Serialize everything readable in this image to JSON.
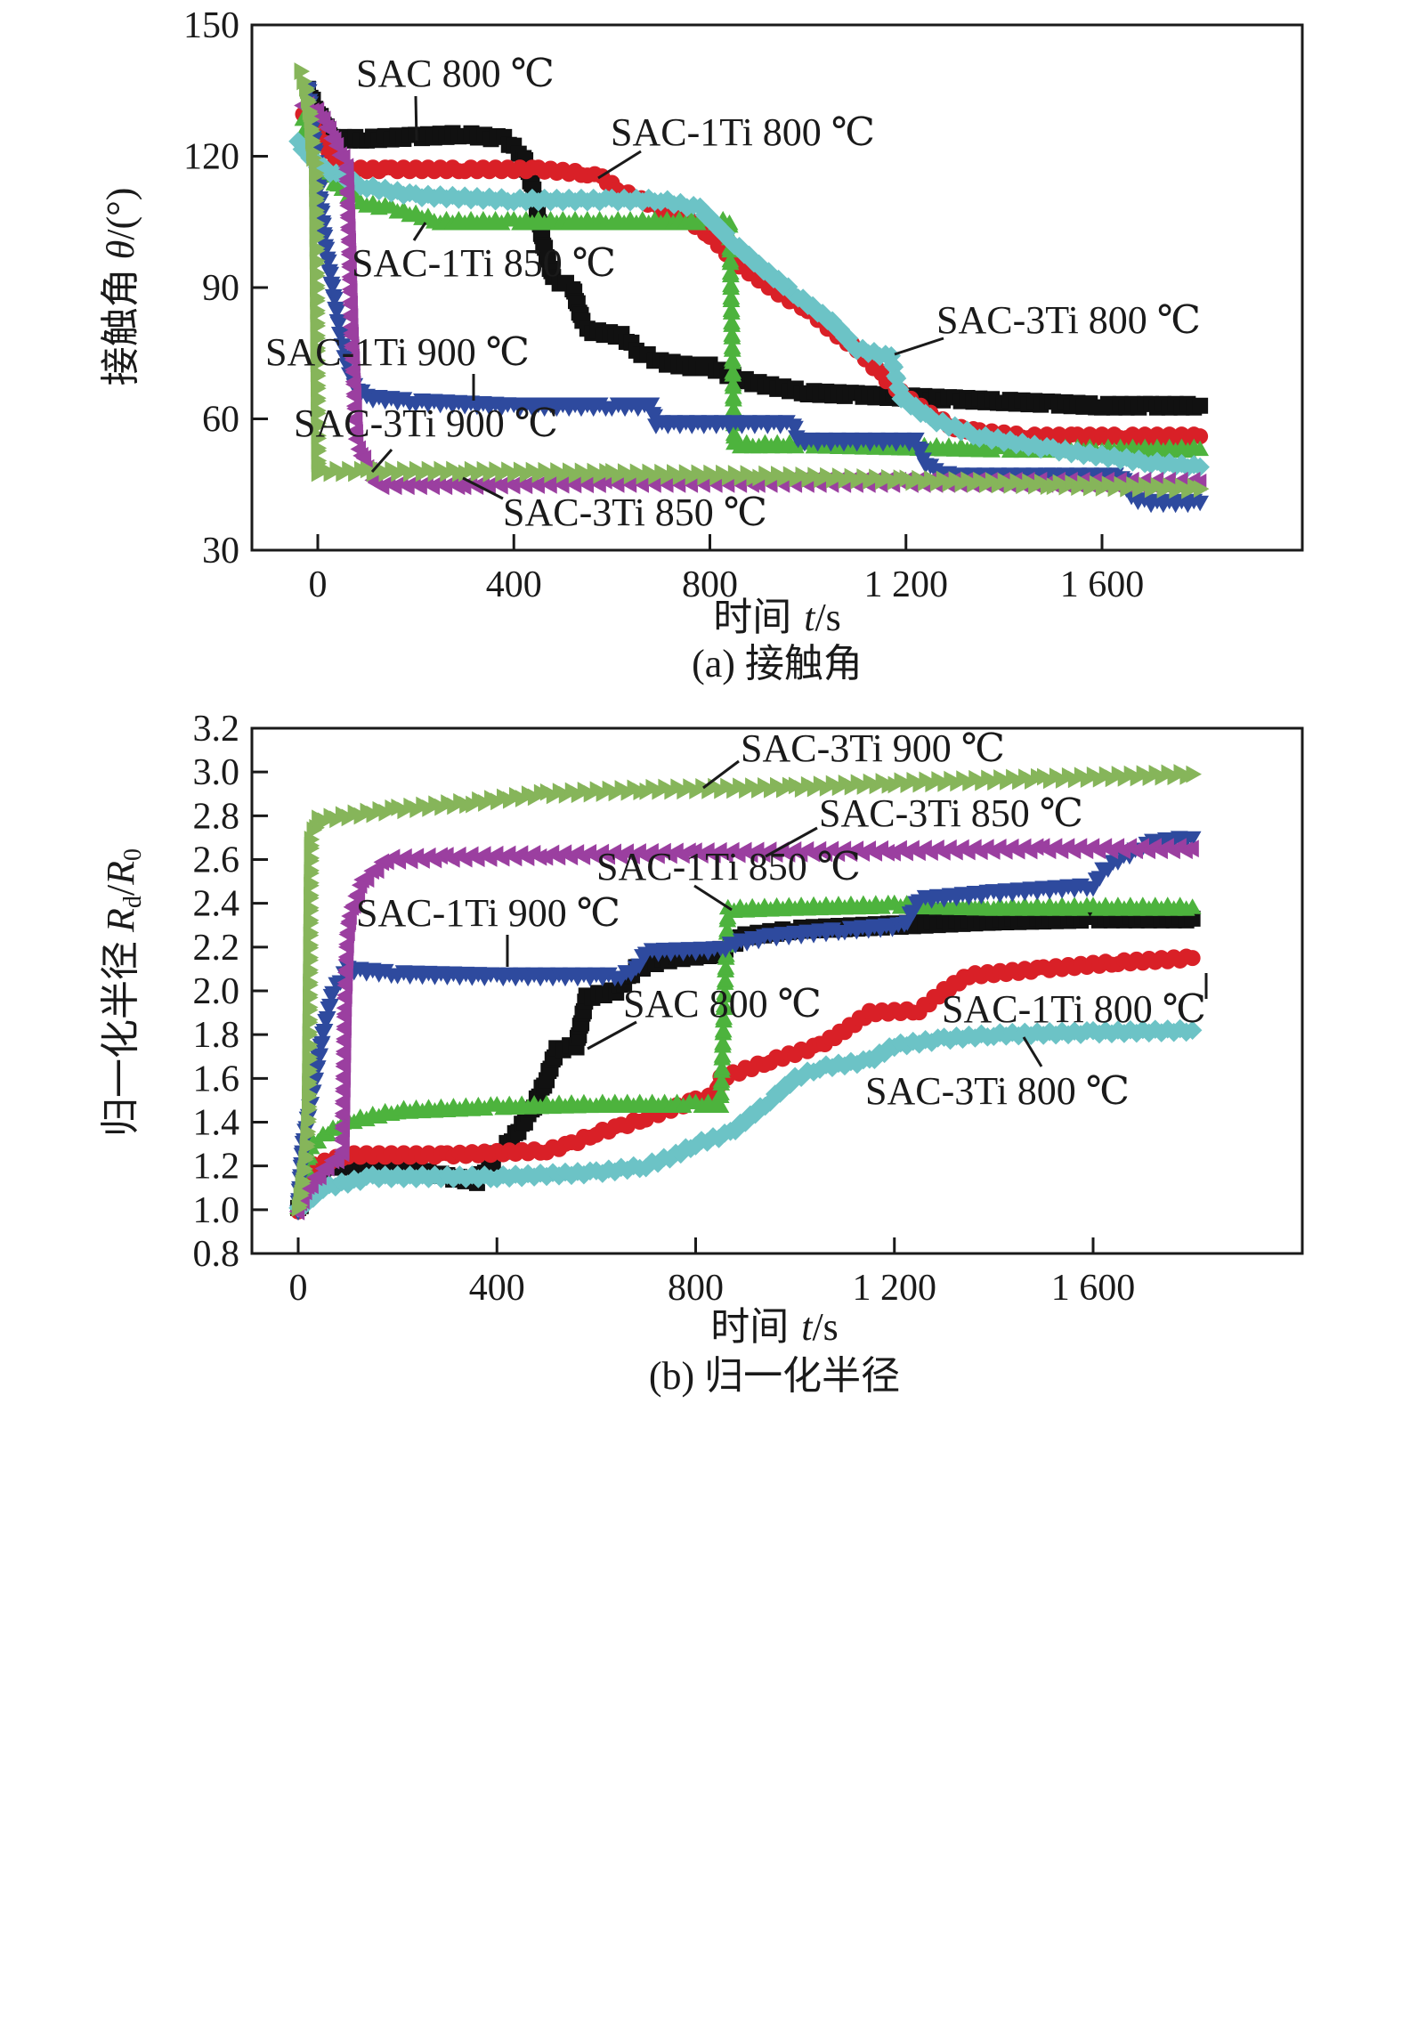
{
  "chart_data": [
    {
      "id": "a",
      "type": "scatter",
      "title": "",
      "caption": "(a) 接触角",
      "xlabel": "时间 t/s",
      "xlabel_parts": {
        "zh": "时间",
        "var": "t",
        "unit": "/s"
      },
      "ylabel": "接触角 θ/(°)",
      "ylabel_parts": {
        "zh": "接触角",
        "var": "θ",
        "unit": "/(°)"
      },
      "xlim": [
        -135,
        1990
      ],
      "ylim": [
        30,
        150
      ],
      "xticks": [
        0,
        400,
        800,
        1200,
        1600
      ],
      "xtick_labels": [
        "0",
        "400",
        "800",
        "1 200",
        "1 600"
      ],
      "yticks": [
        30,
        60,
        90,
        120,
        150
      ],
      "ytick_labels": [
        "30",
        "60",
        "90",
        "120",
        "150"
      ],
      "grid": false,
      "legend": "inline-annotations",
      "series": [
        {
          "name": "SAC 800 ℃",
          "color": "#111111",
          "marker": "square",
          "x": [
            -20,
            0,
            30,
            100,
            200,
            300,
            380,
            420,
            440,
            460,
            480,
            520,
            540,
            560,
            620,
            660,
            700,
            760,
            800,
            860,
            900,
            1000,
            1100,
            1200,
            1300,
            1400,
            1500,
            1600,
            1700,
            1800
          ],
          "y": [
            135,
            130,
            124,
            124,
            124.5,
            125,
            124,
            120,
            112,
            100,
            92,
            90,
            82,
            80,
            79,
            75,
            73,
            72,
            72,
            69,
            68,
            66,
            65.5,
            65,
            64.5,
            64,
            63.5,
            63,
            63,
            63
          ]
        },
        {
          "name": "SAC-1Ti 800 ℃",
          "color": "#d92027",
          "marker": "circle",
          "x": [
            -30,
            0,
            50,
            150,
            300,
            450,
            550,
            580,
            620,
            660,
            700,
            760,
            800,
            850,
            900,
            950,
            1000,
            1050,
            1100,
            1150,
            1200,
            1250,
            1300,
            1350,
            1450,
            1550,
            1650,
            1800
          ],
          "y": [
            130,
            125,
            117,
            117,
            117,
            117,
            116,
            115,
            112,
            110,
            108,
            105,
            102,
            96,
            92,
            88,
            85,
            80,
            76,
            70,
            65,
            61,
            58,
            57,
            56,
            56,
            56,
            56
          ]
        },
        {
          "name": "SAC-1Ti 850 ℃",
          "color": "#4db33d",
          "marker": "triangle-up",
          "x": [
            -30,
            0,
            50,
            100,
            150,
            250,
            400,
            600,
            800,
            840,
            850,
            900,
            1000,
            1200,
            1400,
            1600,
            1800
          ],
          "y": [
            128,
            118,
            112,
            109,
            108,
            105,
            105,
            105,
            105,
            105,
            54,
            54,
            54,
            53.5,
            53,
            53,
            53
          ]
        },
        {
          "name": "SAC-1Ti 900 ℃",
          "color": "#2e4a9e",
          "marker": "triangle-down",
          "x": [
            -20,
            0,
            15,
            30,
            45,
            60,
            80,
            100,
            200,
            400,
            600,
            680,
            690,
            800,
            970,
            980,
            1100,
            1220,
            1240,
            1260,
            1300,
            1500,
            1640,
            1660,
            1700,
            1800
          ],
          "y": [
            136,
            115,
            100,
            90,
            80,
            72,
            67,
            65,
            64,
            63,
            63,
            63,
            59,
            59,
            59,
            55,
            55,
            55,
            50,
            48,
            47,
            47,
            47,
            42,
            41,
            41
          ]
        },
        {
          "name": "SAC-3Ti 800 ℃",
          "color": "#6cc3c6",
          "marker": "diamond",
          "x": [
            -40,
            0,
            50,
            100,
            200,
            400,
            600,
            700,
            780,
            850,
            900,
            980,
            1050,
            1100,
            1170,
            1190,
            1250,
            1350,
            1500,
            1700,
            1800
          ],
          "y": [
            123,
            118,
            115,
            113,
            111,
            110,
            110,
            110,
            108,
            100,
            95,
            88,
            82,
            76,
            74,
            65,
            60,
            56,
            53,
            50,
            49
          ]
        },
        {
          "name": "SAC-3Ti 850 ℃",
          "color": "#9b3fa0",
          "marker": "triangle-left",
          "x": [
            -30,
            0,
            20,
            40,
            60,
            65,
            70,
            80,
            90,
            120,
            300,
            600,
            900,
            1200,
            1500,
            1800
          ],
          "y": [
            132,
            130,
            127,
            122,
            118,
            100,
            80,
            55,
            52,
            45,
            45,
            45.5,
            45.5,
            45.5,
            45.5,
            45.5
          ]
        },
        {
          "name": "SAC-3Ti 900 ℃",
          "color": "#86b55a",
          "marker": "triangle-right",
          "x": [
            -35,
            -25,
            -15,
            -10,
            -5,
            0,
            100,
            300,
            600,
            900,
            1200,
            1500,
            1800
          ],
          "y": [
            139,
            136,
            128,
            120,
            118,
            48,
            48,
            48,
            47.5,
            47,
            46,
            45,
            44
          ]
        }
      ],
      "annotations": [
        {
          "text": "SAC 800 ℃",
          "series": "SAC 800 ℃"
        },
        {
          "text": "SAC-1Ti 800 ℃",
          "series": "SAC-1Ti 800 ℃"
        },
        {
          "text": "SAC-1Ti 850 ℃",
          "series": "SAC-1Ti 850 ℃"
        },
        {
          "text": "SAC-3Ti 800 ℃",
          "series": "SAC-3Ti 800 ℃"
        },
        {
          "text": "SAC-1Ti 900 ℃",
          "series": "SAC-1Ti 900 ℃"
        },
        {
          "text": "SAC-3Ti 900 ℃",
          "series": "SAC-3Ti 900 ℃"
        },
        {
          "text": "SAC-3Ti 850 ℃",
          "series": "SAC-3Ti 850 ℃"
        }
      ]
    },
    {
      "id": "b",
      "type": "scatter",
      "title": "",
      "caption": "(b) 归一化半径",
      "xlabel": "时间 t/s",
      "xlabel_parts": {
        "zh": "时间",
        "var": "t",
        "unit": "/s"
      },
      "ylabel": "归一化半径 Rd/R0",
      "ylabel_parts": {
        "zh": "归一化半径",
        "var": "R",
        "sub1": "d",
        "slash": "/",
        "var2": "R",
        "sub2": "0"
      },
      "xlim": [
        -100,
        2000
      ],
      "ylim": [
        0.8,
        3.2
      ],
      "xticks": [
        0,
        400,
        800,
        1200,
        1600
      ],
      "xtick_labels": [
        "0",
        "400",
        "800",
        "1 200",
        "1 600"
      ],
      "yticks": [
        0.8,
        1.0,
        1.2,
        1.4,
        1.6,
        1.8,
        2.0,
        2.2,
        2.4,
        2.6,
        2.8,
        3.0,
        3.2
      ],
      "ytick_labels": [
        "0.8",
        "1.0",
        "1.2",
        "1.4",
        "1.6",
        "1.8",
        "2.0",
        "2.2",
        "2.4",
        "2.6",
        "2.8",
        "3.0",
        "3.2"
      ],
      "grid": false,
      "legend": "inline-annotations",
      "series": [
        {
          "name": "SAC 800 ℃",
          "color": "#111111",
          "marker": "square",
          "x": [
            0,
            30,
            60,
            200,
            300,
            360,
            400,
            430,
            470,
            500,
            520,
            560,
            580,
            640,
            680,
            720,
            760,
            840,
            900,
            1000,
            1200,
            1400,
            1600,
            1800
          ],
          "y": [
            1.0,
            1.15,
            1.2,
            1.2,
            1.15,
            1.13,
            1.25,
            1.32,
            1.45,
            1.6,
            1.73,
            1.75,
            1.97,
            2.0,
            2.1,
            2.13,
            2.15,
            2.17,
            2.25,
            2.28,
            2.3,
            2.32,
            2.33,
            2.33
          ]
        },
        {
          "name": "SAC-1Ti 800 ℃",
          "color": "#d92027",
          "marker": "circle",
          "x": [
            0,
            30,
            100,
            300,
            500,
            550,
            600,
            650,
            700,
            800,
            840,
            850,
            950,
            1050,
            1100,
            1150,
            1250,
            1300,
            1350,
            1500,
            1650,
            1800
          ],
          "y": [
            1.0,
            1.2,
            1.25,
            1.25,
            1.27,
            1.3,
            1.35,
            1.38,
            1.42,
            1.5,
            1.52,
            1.6,
            1.68,
            1.75,
            1.82,
            1.9,
            1.91,
            2.0,
            2.07,
            2.1,
            2.13,
            2.15
          ]
        },
        {
          "name": "SAC-1Ti 850 ℃",
          "color": "#4db33d",
          "marker": "triangle-up",
          "x": [
            0,
            15,
            30,
            60,
            100,
            200,
            400,
            600,
            800,
            850,
            865,
            1000,
            1200,
            1400,
            1600,
            1800
          ],
          "y": [
            1.0,
            1.2,
            1.3,
            1.35,
            1.4,
            1.45,
            1.47,
            1.48,
            1.48,
            1.48,
            2.37,
            2.38,
            2.39,
            2.38,
            2.38,
            2.38
          ]
        },
        {
          "name": "SAC-1Ti 900 ℃",
          "color": "#2e4a9e",
          "marker": "triangle-down",
          "x": [
            0,
            10,
            30,
            50,
            70,
            100,
            200,
            400,
            650,
            680,
            700,
            850,
            880,
            950,
            1100,
            1220,
            1250,
            1400,
            1600,
            1620,
            1650,
            1720,
            1800
          ],
          "y": [
            1.0,
            1.3,
            1.55,
            1.8,
            2.0,
            2.1,
            2.08,
            2.07,
            2.07,
            2.1,
            2.18,
            2.19,
            2.22,
            2.25,
            2.28,
            2.3,
            2.42,
            2.45,
            2.48,
            2.55,
            2.6,
            2.68,
            2.7
          ]
        },
        {
          "name": "SAC-3Ti 800 ℃",
          "color": "#6cc3c6",
          "marker": "diamond",
          "x": [
            0,
            50,
            150,
            400,
            600,
            700,
            760,
            800,
            870,
            950,
            1000,
            1050,
            1150,
            1200,
            1300,
            1400,
            1600,
            1800
          ],
          "y": [
            1.0,
            1.1,
            1.15,
            1.15,
            1.17,
            1.2,
            1.25,
            1.3,
            1.35,
            1.5,
            1.6,
            1.65,
            1.68,
            1.75,
            1.78,
            1.8,
            1.81,
            1.82
          ]
        },
        {
          "name": "SAC-3Ti 850 ℃",
          "color": "#9b3fa0",
          "marker": "triangle-left",
          "x": [
            0,
            20,
            60,
            90,
            95,
            100,
            105,
            130,
            180,
            300,
            500,
            800,
            1200,
            1500,
            1800
          ],
          "y": [
            1.0,
            1.1,
            1.2,
            1.25,
            1.93,
            2.25,
            2.35,
            2.5,
            2.6,
            2.61,
            2.62,
            2.63,
            2.64,
            2.65,
            2.65
          ]
        },
        {
          "name": "SAC-3Ti 900 ℃",
          "color": "#86b55a",
          "marker": "triangle-right",
          "x": [
            0,
            15,
            20,
            25,
            40,
            100,
            200,
            350,
            500,
            700,
            1000,
            1200,
            1500,
            1800
          ],
          "y": [
            1.0,
            1.25,
            1.45,
            2.7,
            2.78,
            2.8,
            2.83,
            2.86,
            2.9,
            2.92,
            2.93,
            2.95,
            2.97,
            2.99
          ]
        }
      ],
      "annotations": [
        {
          "text": "SAC-3Ti 900 ℃",
          "series": "SAC-3Ti 900 ℃"
        },
        {
          "text": "SAC-3Ti 850 ℃",
          "series": "SAC-3Ti 850 ℃"
        },
        {
          "text": "SAC-1Ti 850 ℃",
          "series": "SAC-1Ti 850 ℃"
        },
        {
          "text": "SAC-1Ti 900 ℃",
          "series": "SAC-1Ti 900 ℃"
        },
        {
          "text": "SAC 800 ℃",
          "series": "SAC 800 ℃"
        },
        {
          "text": "SAC-1Ti 800 ℃",
          "series": "SAC-1Ti 800 ℃"
        },
        {
          "text": "SAC-3Ti 800 ℃",
          "series": "SAC-3Ti 800 ℃"
        }
      ]
    }
  ]
}
